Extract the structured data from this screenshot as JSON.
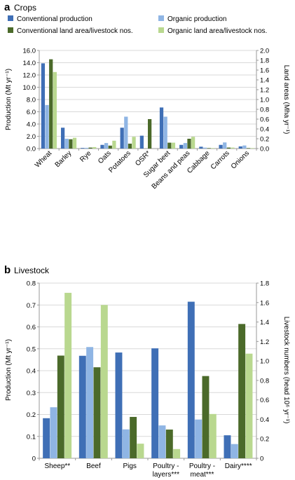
{
  "colors": {
    "conv_prod": "#3f6fb6",
    "org_prod": "#8fb5e4",
    "conv_land": "#4b6a2a",
    "org_land": "#b9d88f"
  },
  "chart_data": [
    {
      "type": "bar",
      "panel_letter": "a",
      "title": "Crops",
      "ylabel": "Production (Mt yr⁻¹)",
      "y2label": "Land areas (Mha yr⁻¹)",
      "ylim": [
        0,
        16
      ],
      "y2lim": [
        0,
        2
      ],
      "yticks": [
        "0.0",
        "2.0",
        "4.0",
        "6.0",
        "8.0",
        "10.0",
        "12.0",
        "14.0",
        "16.0"
      ],
      "y2ticks": [
        "0.0",
        "0.2",
        "0.4",
        "0.6",
        "0.8",
        "1.0",
        "1.2",
        "1.4",
        "1.6",
        "1.8",
        "2.0"
      ],
      "categories": [
        "Wheat",
        "Barley",
        "Rye",
        "Oats",
        "Potatoes",
        "OSR*",
        "Sugar beet",
        "Beans and peas",
        "Cabbage",
        "Carrots",
        "Onions"
      ],
      "legend": [
        "Conventional production",
        "Organic production",
        "Conventional land area/livestock nos.",
        "Organic land area/livestock nos."
      ],
      "series": [
        {
          "name": "Conventional production",
          "axis": "left",
          "values": [
            13.9,
            3.4,
            0.1,
            0.6,
            3.4,
            2.1,
            6.7,
            0.6,
            0.3,
            0.6,
            0.35
          ]
        },
        {
          "name": "Organic production",
          "axis": "left",
          "values": [
            7.1,
            1.6,
            0.12,
            0.9,
            5.2,
            0.0,
            5.2,
            0.9,
            0.15,
            1.0,
            0.5
          ]
        },
        {
          "name": "Conventional land area/livestock nos.",
          "axis": "right",
          "values": [
            1.82,
            0.19,
            0.02,
            0.06,
            0.1,
            0.6,
            0.12,
            0.2,
            0.01,
            0.02,
            0.01
          ]
        },
        {
          "name": "Organic land area/livestock nos.",
          "axis": "right",
          "values": [
            1.56,
            0.22,
            0.03,
            0.16,
            0.24,
            0.0,
            0.12,
            0.24,
            0.01,
            0.02,
            0.01
          ]
        }
      ]
    },
    {
      "type": "bar",
      "panel_letter": "b",
      "title": "Livestock",
      "ylabel": "Production (Mt yr⁻¹)",
      "y2label": "Livestock numbers (head 10⁶ yr⁻¹)",
      "ylim": [
        0,
        0.8
      ],
      "y2lim": [
        0,
        1.8
      ],
      "yticks": [
        "0",
        "0.1",
        "0.2",
        "0.3",
        "0.4",
        "0.5",
        "0.6",
        "0.7",
        "0.8"
      ],
      "y2ticks": [
        "0",
        "0.2",
        "0.4",
        "0.6",
        "0.8",
        "1.0",
        "1.2",
        "1.4",
        "1.6",
        "1.8"
      ],
      "categories": [
        [
          "Sheep**"
        ],
        [
          "Beef"
        ],
        [
          "Pigs"
        ],
        [
          "Poultry -",
          "layers***"
        ],
        [
          "Poultry -",
          "meat***"
        ],
        [
          "Dairy****"
        ]
      ],
      "series": [
        {
          "name": "Conventional production",
          "axis": "left",
          "values": [
            0.183,
            0.468,
            0.483,
            0.502,
            0.715,
            0.105
          ]
        },
        {
          "name": "Organic production",
          "axis": "left",
          "values": [
            0.233,
            0.508,
            0.132,
            0.15,
            0.177,
            0.065
          ]
        },
        {
          "name": "Conventional land area/livestock nos.",
          "axis": "right",
          "values": [
            1.055,
            0.935,
            0.425,
            0.295,
            0.845,
            1.38
          ]
        },
        {
          "name": "Organic land area/livestock nos.",
          "axis": "right",
          "values": [
            1.7,
            1.575,
            0.15,
            0.095,
            0.455,
            1.075
          ]
        }
      ]
    }
  ]
}
